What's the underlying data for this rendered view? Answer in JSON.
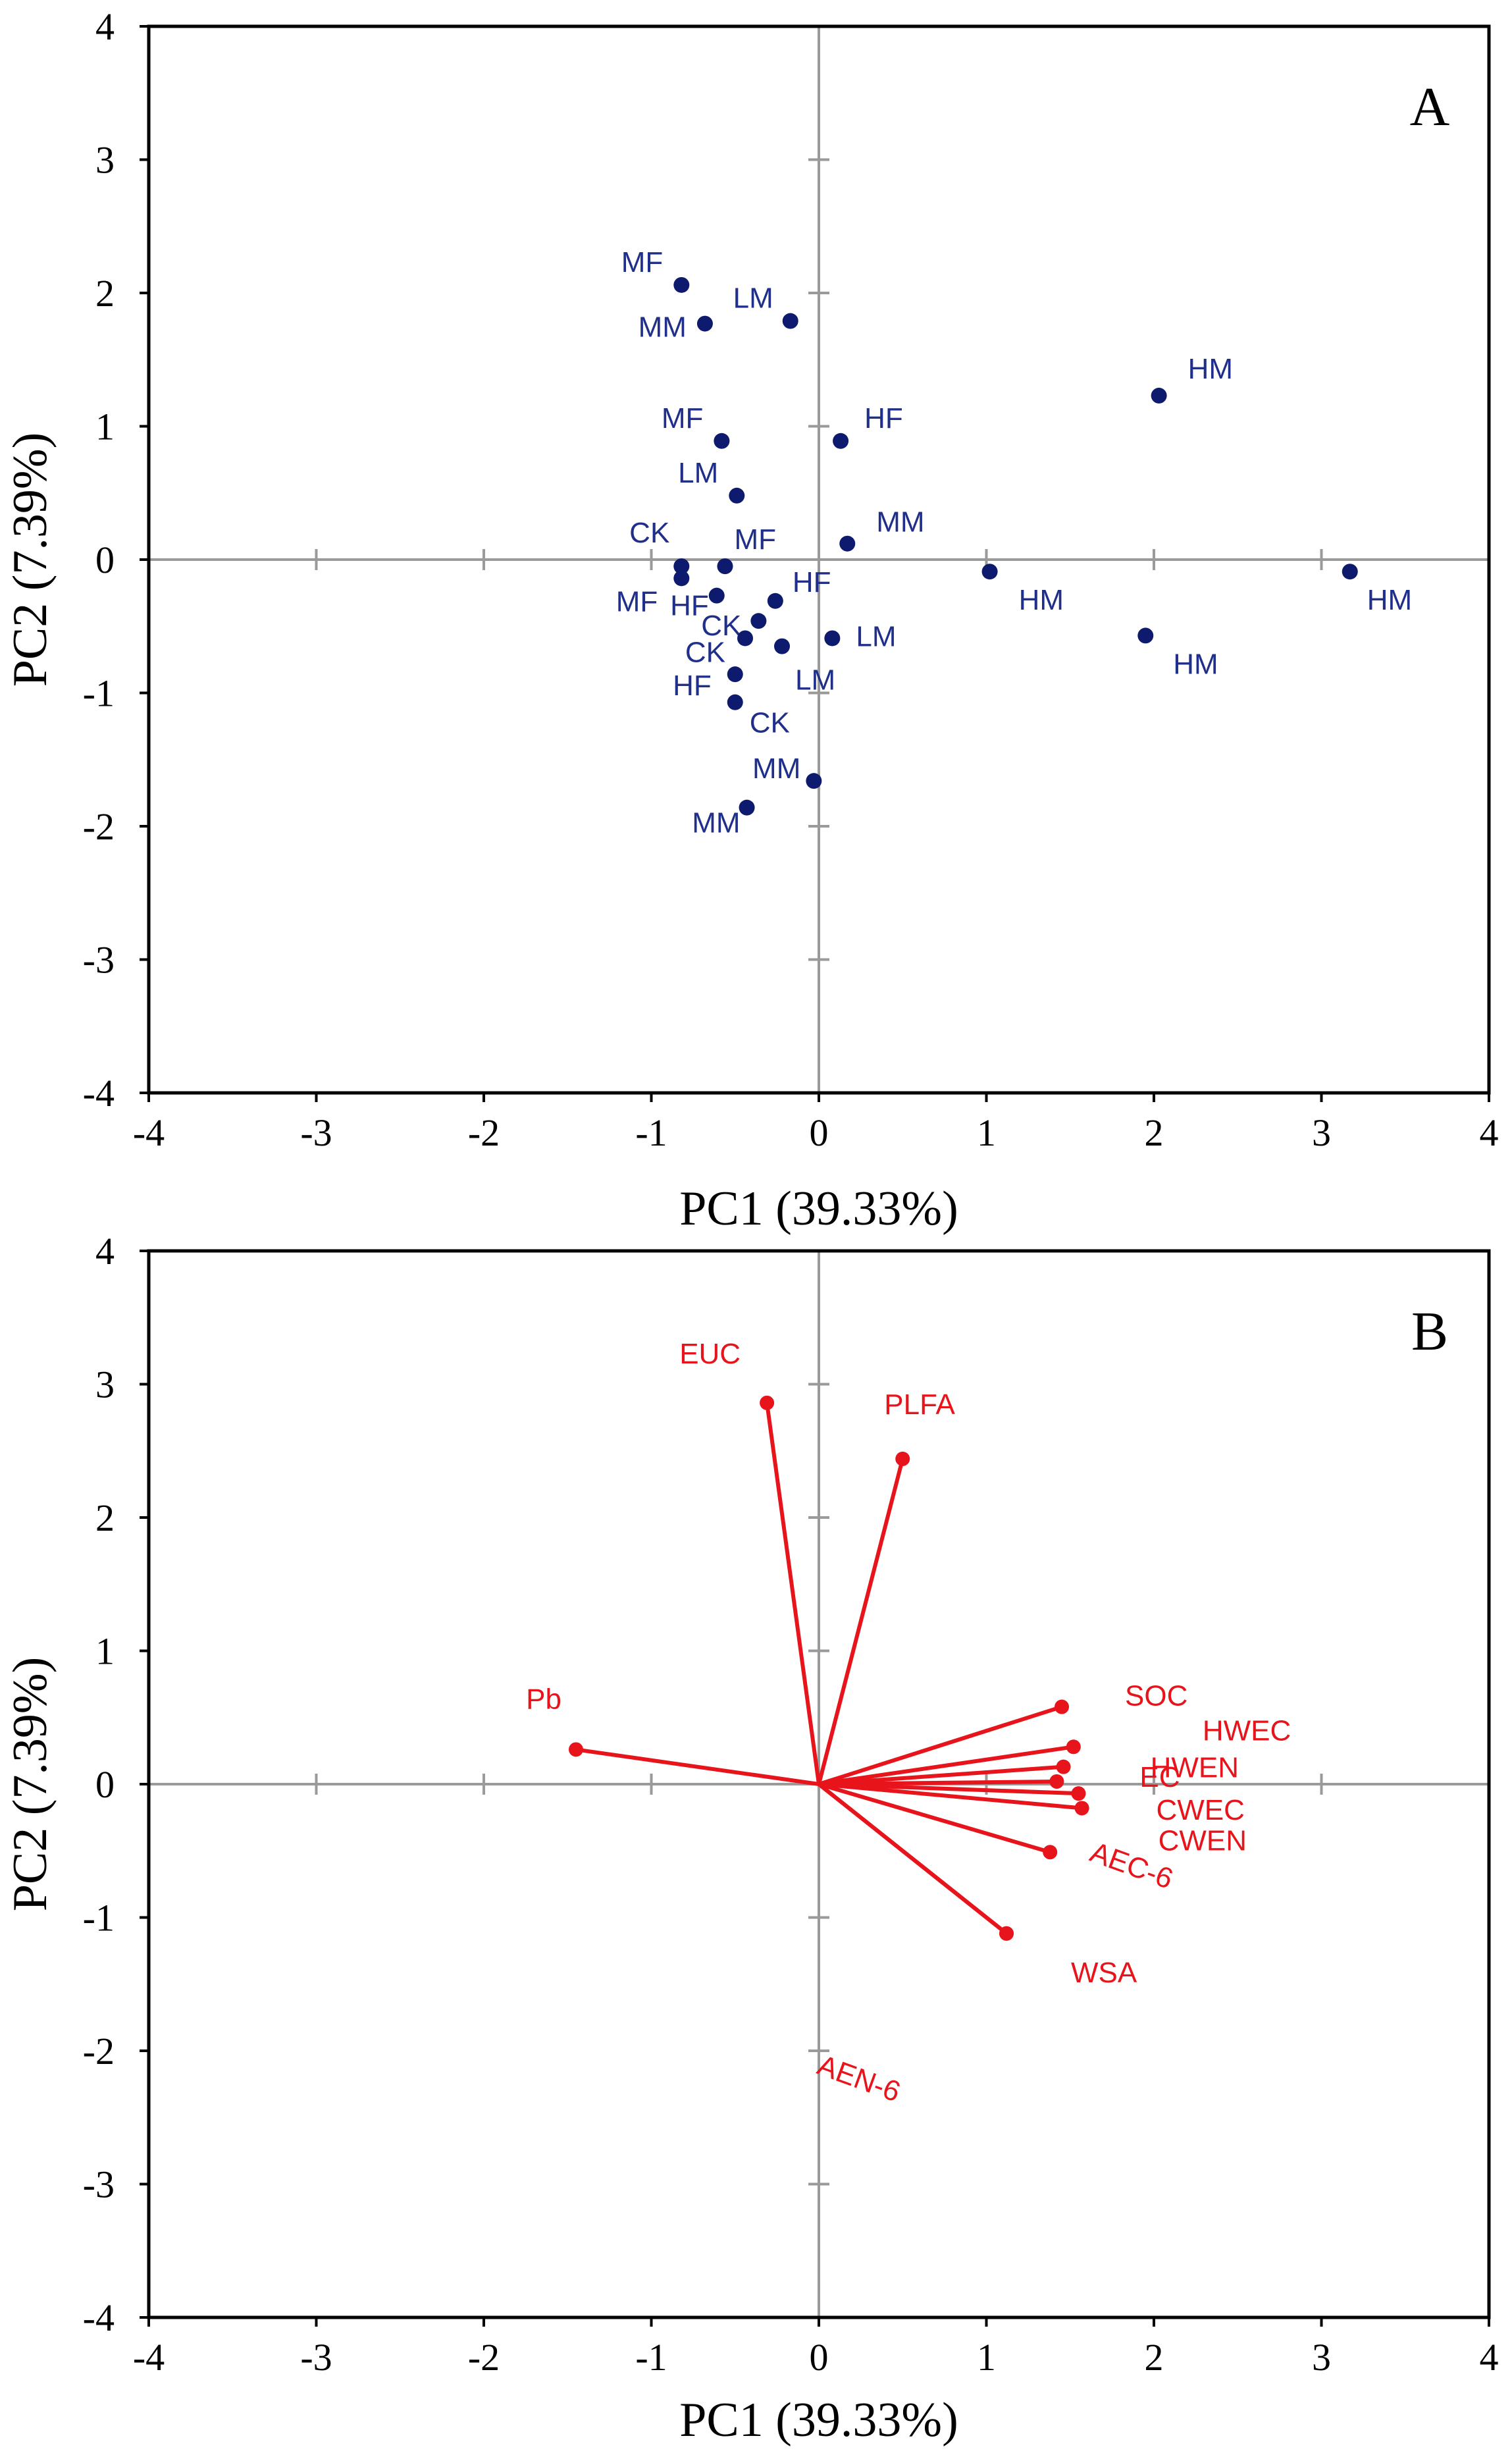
{
  "colors": {
    "scores": "#0d1a6e",
    "scores_label": "#1f2f8a",
    "loadings": "#e8141b",
    "zero_line": "#9a9a9a",
    "frame": "#000000"
  },
  "chart_data": [
    {
      "type": "scatter",
      "panel": "A",
      "xlabel": "PC1 (39.33%)",
      "ylabel": "PC2 (7.39%)",
      "xlim": [
        -4,
        4
      ],
      "ylim": [
        -4,
        4
      ],
      "xticks": [
        "-4",
        "-3",
        "-2",
        "-1",
        "0",
        "1",
        "2",
        "3",
        "4"
      ],
      "yticks": [
        "4",
        "3",
        "2",
        "1",
        "0",
        "-1",
        "-2",
        "-3",
        "-4"
      ],
      "points": [
        {
          "label": "MF",
          "x": -0.82,
          "y": 2.06
        },
        {
          "label": "MM",
          "x": -0.68,
          "y": 1.77
        },
        {
          "label": "LM",
          "x": -0.17,
          "y": 1.79
        },
        {
          "label": "HM",
          "x": 2.03,
          "y": 1.23
        },
        {
          "label": "MF",
          "x": -0.58,
          "y": 0.89
        },
        {
          "label": "HF",
          "x": 0.13,
          "y": 0.89
        },
        {
          "label": "LM",
          "x": -0.49,
          "y": 0.48
        },
        {
          "label": "MM",
          "x": 0.17,
          "y": 0.12
        },
        {
          "label": "CK",
          "x": -0.82,
          "y": -0.05
        },
        {
          "label": "MF",
          "x": -0.56,
          "y": -0.05
        },
        {
          "label": "MF",
          "x": -0.82,
          "y": -0.14
        },
        {
          "label": "HM",
          "x": 1.02,
          "y": -0.09
        },
        {
          "label": "HM",
          "x": 3.17,
          "y": -0.09
        },
        {
          "label": "HF",
          "x": -0.61,
          "y": -0.27
        },
        {
          "label": "HF",
          "x": -0.26,
          "y": -0.31
        },
        {
          "label": "CK",
          "x": -0.36,
          "y": -0.46
        },
        {
          "label": "CK",
          "x": -0.44,
          "y": -0.59
        },
        {
          "label": "LM",
          "x": -0.22,
          "y": -0.65
        },
        {
          "label": "LM",
          "x": 0.08,
          "y": -0.59
        },
        {
          "label": "HM",
          "x": 1.95,
          "y": -0.57
        },
        {
          "label": "HF",
          "x": -0.5,
          "y": -0.86
        },
        {
          "label": "CK",
          "x": -0.5,
          "y": -1.07
        },
        {
          "label": "MM",
          "x": -0.03,
          "y": -1.66
        },
        {
          "label": "MM",
          "x": -0.43,
          "y": -1.86
        }
      ]
    },
    {
      "type": "biplot-loadings",
      "panel": "B",
      "xlabel": "PC1 (39.33%)",
      "ylabel": "PC2 (7.39%)",
      "xlim": [
        -4,
        4
      ],
      "ylim": [
        -4,
        4
      ],
      "xticks": [
        "-4",
        "-3",
        "-2",
        "-1",
        "0",
        "1",
        "2",
        "3",
        "4"
      ],
      "yticks": [
        "4",
        "3",
        "2",
        "1",
        "0",
        "-1",
        "-2",
        "-3",
        "-4"
      ],
      "vectors": [
        {
          "label": "EUC",
          "x": -0.31,
          "y": 2.86
        },
        {
          "label": "PLFA",
          "x": 0.5,
          "y": 2.44
        },
        {
          "label": "Pb",
          "x": -1.45,
          "y": 0.26
        },
        {
          "label": "SOC",
          "x": 1.45,
          "y": 0.58
        },
        {
          "label": "HWEC",
          "x": 1.52,
          "y": 0.28
        },
        {
          "label": "HWEN",
          "x": 1.46,
          "y": 0.13
        },
        {
          "label": "EC",
          "x": 1.42,
          "y": 0.02
        },
        {
          "label": "CWEC",
          "x": 1.55,
          "y": -0.07
        },
        {
          "label": "CWEN",
          "x": 1.57,
          "y": -0.18
        },
        {
          "label": "AEC-6",
          "x": 1.38,
          "y": -0.51
        },
        {
          "label": "AEN-6",
          "x": 1.12,
          "y": -1.12
        },
        {
          "label": "WSA",
          "x": 1.12,
          "y": -1.12
        }
      ]
    }
  ]
}
